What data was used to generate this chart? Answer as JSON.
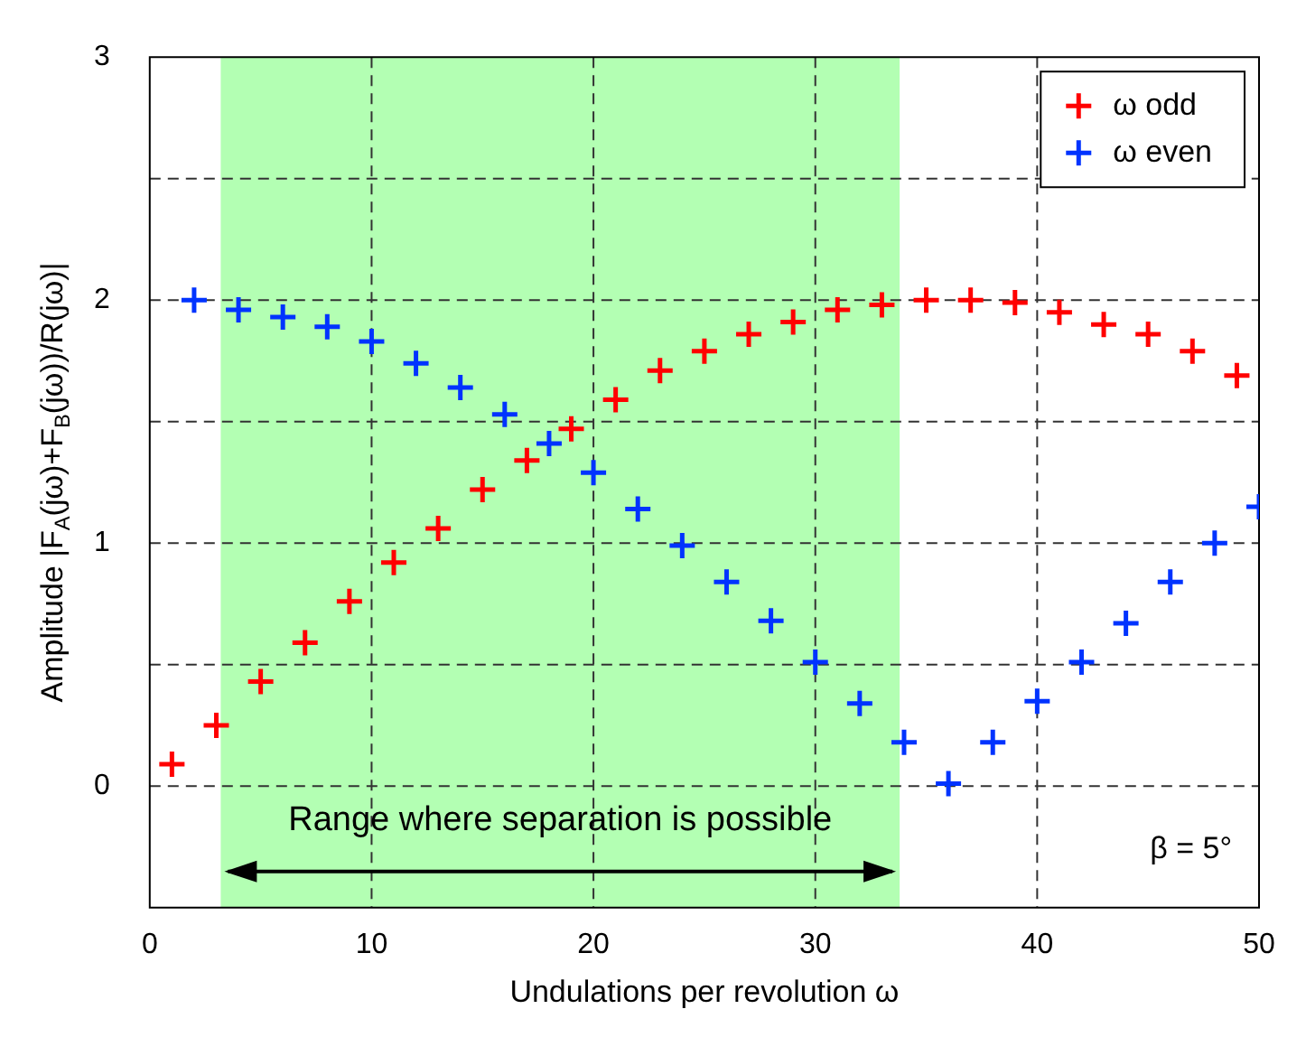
{
  "chart_data": {
    "type": "scatter",
    "xlabel": "Undulations per revolution ω",
    "ylabel": "Amplitude |F$_{A}$(jω)+F$_{B}$(jω))/R(jω)|",
    "xlim": [
      0,
      50
    ],
    "xticks": [
      0,
      10,
      20,
      30,
      40,
      50
    ],
    "ylim": [
      -0.5,
      3
    ],
    "yticks": [
      0,
      {
        "value": 0.5,
        "label": null
      },
      1,
      {
        "value": 1.5,
        "label": null
      },
      2,
      {
        "value": 2.5,
        "label": null
      },
      3
    ],
    "grid": true,
    "legend": "top right",
    "marker": "cross",
    "series": [
      {
        "name": "ω odd",
        "color": "#ff0000",
        "x": [
          1,
          3,
          5,
          7,
          9,
          11,
          13,
          15,
          17,
          19,
          21,
          23,
          25,
          27,
          29,
          31,
          33,
          35,
          37,
          39,
          41,
          43,
          45,
          47,
          49
        ],
        "values": [
          0.09,
          0.25,
          0.43,
          0.59,
          0.76,
          0.92,
          1.06,
          1.22,
          1.34,
          1.47,
          1.59,
          1.71,
          1.79,
          1.86,
          1.91,
          1.96,
          1.98,
          2.0,
          2.0,
          1.99,
          1.95,
          1.9,
          1.86,
          1.79,
          1.69
        ]
      },
      {
        "name": "ω even",
        "color": "#0033ff",
        "x": [
          2,
          4,
          6,
          8,
          10,
          12,
          14,
          16,
          18,
          20,
          22,
          24,
          26,
          28,
          30,
          32,
          34,
          36,
          38,
          40,
          42,
          44,
          46,
          48,
          50
        ],
        "values": [
          2.0,
          1.96,
          1.93,
          1.89,
          1.83,
          1.74,
          1.64,
          1.53,
          1.41,
          1.29,
          1.14,
          0.99,
          0.84,
          0.68,
          0.51,
          0.34,
          0.18,
          0.01,
          0.18,
          0.35,
          0.51,
          0.67,
          0.84,
          1.0,
          1.15
        ]
      }
    ],
    "bands": [
      {
        "axis": "x",
        "from": 3.2,
        "to": 33.8,
        "label": "Range where separation is possible",
        "color": "#b3ffb3"
      }
    ],
    "annotations": [
      "β = 5°"
    ]
  }
}
